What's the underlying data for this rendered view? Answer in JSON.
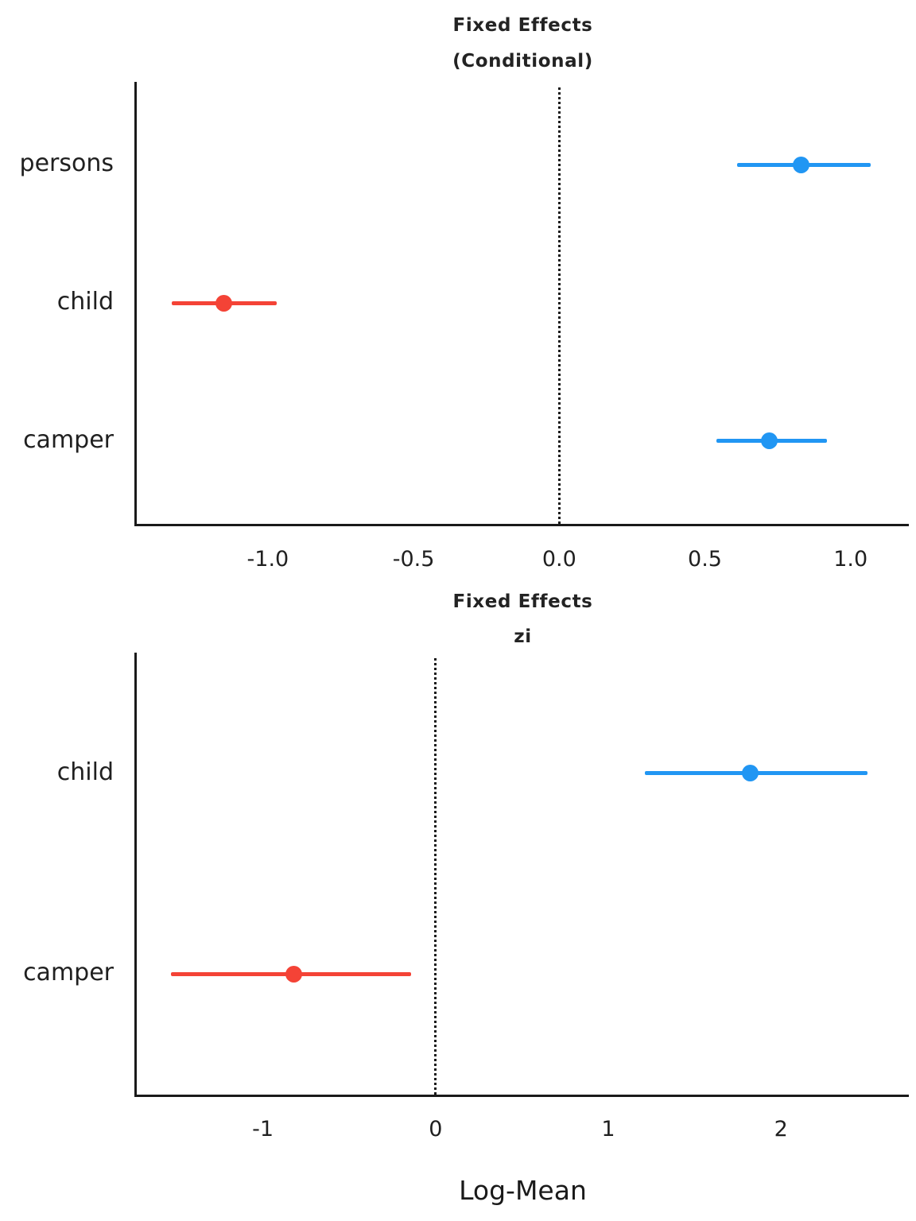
{
  "figure": {
    "xlabel": "Log-Mean",
    "colors": {
      "positive": "#2196F3",
      "negative": "#F44336",
      "axis": "#1a1a1a",
      "background": "#ffffff"
    }
  },
  "chart_data": [
    {
      "type": "scatter",
      "style": "forest-pointrange",
      "title": "Fixed Effects",
      "subtitle": "(Conditional)",
      "categories": [
        "persons",
        "child",
        "camper"
      ],
      "series": [
        {
          "name": "estimate",
          "values": [
            0.83,
            -1.15,
            0.72
          ]
        },
        {
          "name": "ci_low",
          "values": [
            0.61,
            -1.33,
            0.54
          ]
        },
        {
          "name": "ci_high",
          "values": [
            1.07,
            -0.97,
            0.92
          ]
        }
      ],
      "point_colors": [
        "#2196F3",
        "#F44336",
        "#2196F3"
      ],
      "vline": 0,
      "xlim": [
        -1.45,
        1.2
      ],
      "xticks": [
        -1.0,
        -0.5,
        0.0,
        0.5,
        1.0
      ],
      "xtick_labels": [
        "-1.0",
        "-0.5",
        "0.0",
        "0.5",
        "1.0"
      ],
      "grid": false,
      "legend": "none"
    },
    {
      "type": "scatter",
      "style": "forest-pointrange",
      "title": "Fixed Effects",
      "subtitle": "zi",
      "categories": [
        "child",
        "camper"
      ],
      "series": [
        {
          "name": "estimate",
          "values": [
            1.82,
            -0.82
          ]
        },
        {
          "name": "ci_low",
          "values": [
            1.21,
            -1.53
          ]
        },
        {
          "name": "ci_high",
          "values": [
            2.5,
            -0.14
          ]
        }
      ],
      "point_colors": [
        "#2196F3",
        "#F44336"
      ],
      "vline": 0,
      "xlim": [
        -1.73,
        2.74
      ],
      "xticks": [
        -1,
        0,
        1,
        2
      ],
      "xtick_labels": [
        "-1",
        "0",
        "1",
        "2"
      ],
      "grid": false,
      "legend": "none"
    }
  ]
}
